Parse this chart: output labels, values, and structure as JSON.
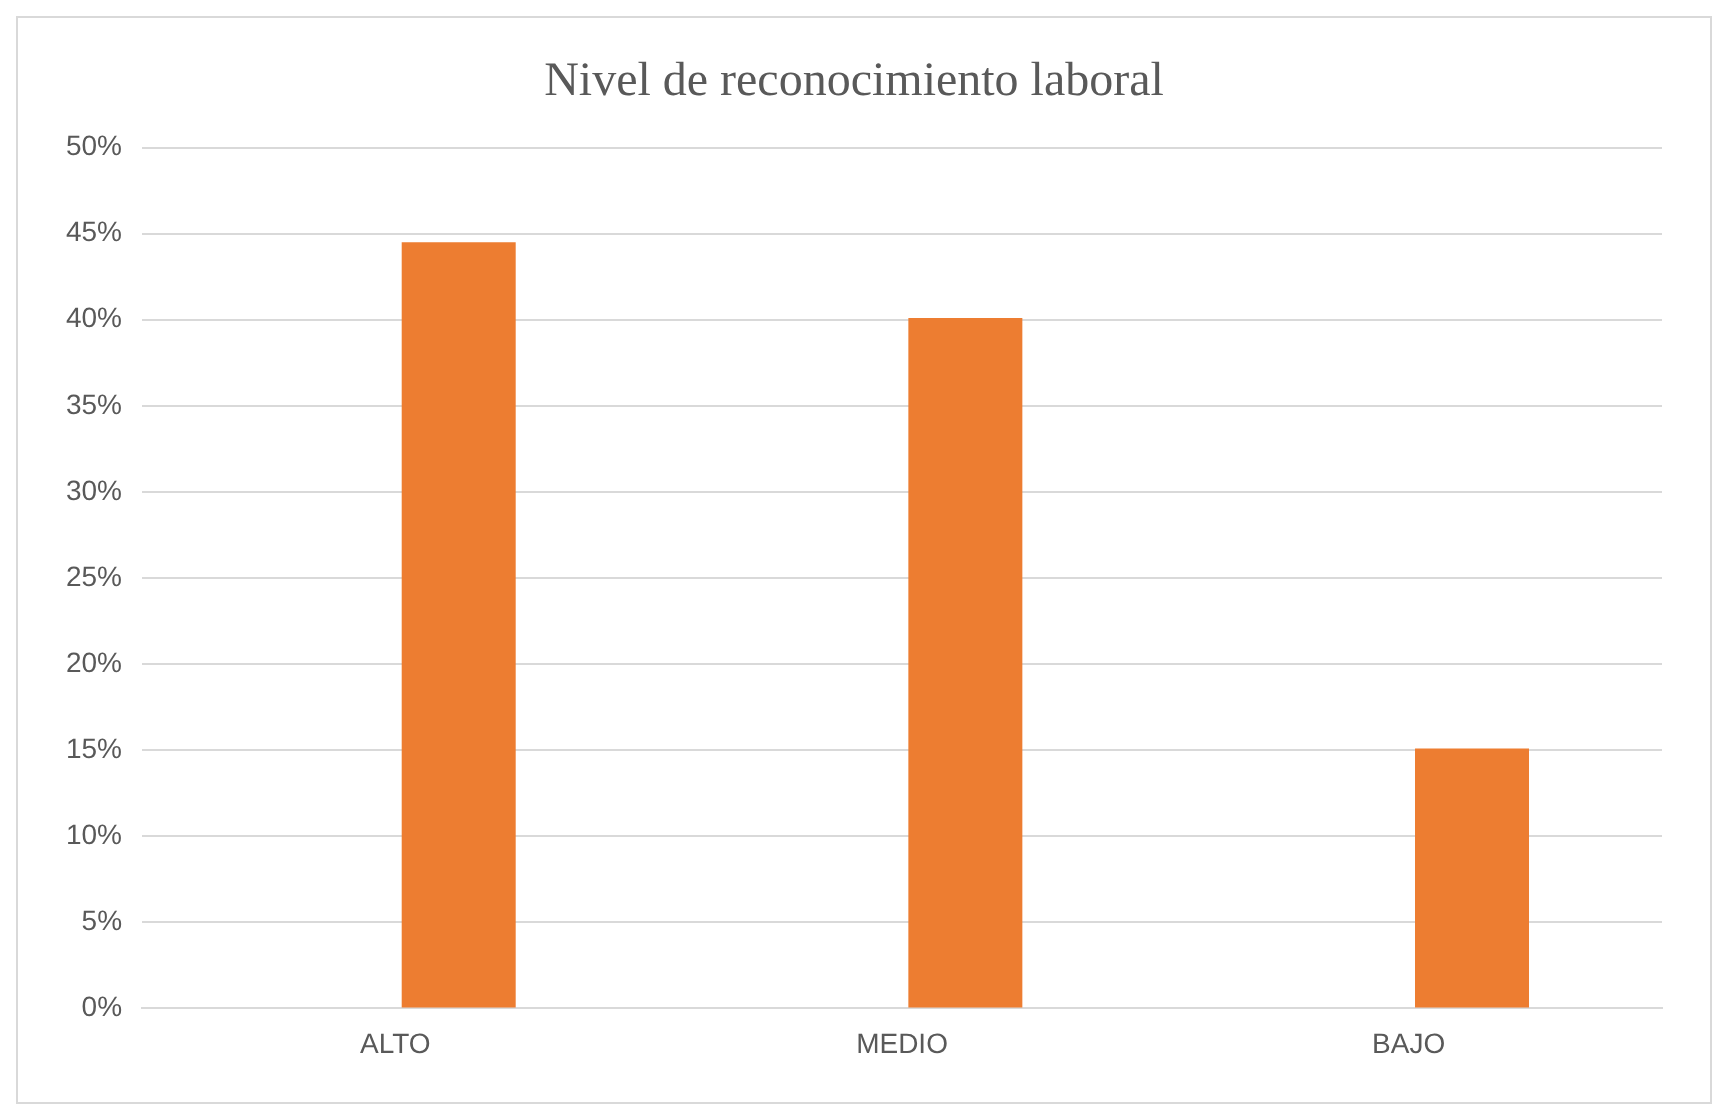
{
  "chart_data": {
    "type": "bar",
    "title": "Nivel de reconocimiento laboral",
    "categories": [
      "ALTO",
      "MEDIO",
      "BAJO"
    ],
    "series": [
      {
        "color": "#ed7d31",
        "values": [
          44.5,
          40.1,
          15.1
        ]
      }
    ],
    "ylim": [
      0,
      50
    ],
    "yticks": [
      {
        "value": 0,
        "label": "0%"
      },
      {
        "value": 5,
        "label": "5%"
      },
      {
        "value": 10,
        "label": "10%"
      },
      {
        "value": 15,
        "label": "15%"
      },
      {
        "value": 20,
        "label": "20%"
      },
      {
        "value": 25,
        "label": "25%"
      },
      {
        "value": 30,
        "label": "30%"
      },
      {
        "value": 35,
        "label": "35%"
      },
      {
        "value": 40,
        "label": "40%"
      },
      {
        "value": 45,
        "label": "45%"
      },
      {
        "value": 50,
        "label": "50%"
      }
    ],
    "grid": "y",
    "legend": false
  }
}
